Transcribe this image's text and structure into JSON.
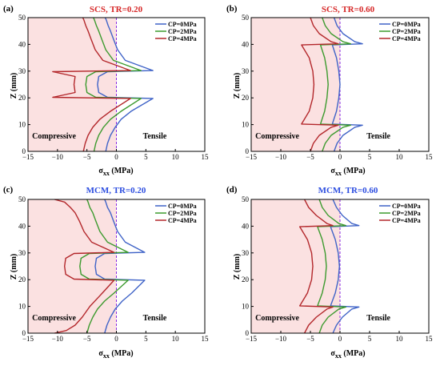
{
  "colors": {
    "cp0": "#3f63c7",
    "cp2": "#3c9a2e",
    "cp4": "#b3272b",
    "compressive_fill": "#fbe1e1",
    "zero_line": "#8a2be2",
    "title_scs": "#d62727",
    "title_mcm": "#2d4ee0"
  },
  "chart_data": [
    {
      "type": "line",
      "panel_label": "(a)",
      "title": "SCS, TR=0.20",
      "title_color": "#d62727",
      "xlabel": "σxx (MPa)",
      "ylabel": "Z (mm)",
      "xlim": [
        -15,
        15
      ],
      "ylim": [
        0,
        50
      ],
      "xticks": [
        "−15",
        "−10",
        "−5",
        "0",
        "5",
        "10",
        "15"
      ],
      "yticks": [
        "0",
        "10",
        "20",
        "30",
        "40",
        "50"
      ],
      "region_labels": [
        "Compressive",
        "Tensile"
      ],
      "interfaces_mm": [
        20,
        30
      ],
      "series": [
        {
          "name": "CP=0MPa",
          "color": "#3f63c7",
          "x": [
            -1.8,
            -1.5,
            -1.0,
            -0.2,
            0.8,
            2.5,
            6.2,
            -1.5,
            -3.0,
            -3.2,
            -3.0,
            -1.5,
            6.2,
            1.5,
            0.2,
            -0.5,
            -1.0,
            -1.4,
            -1.7,
            -1.9
          ],
          "z": [
            0,
            3,
            6,
            9,
            12,
            15,
            19.8,
            20.2,
            22,
            25,
            28,
            29.8,
            30.2,
            34,
            38,
            42,
            45,
            47,
            49,
            50
          ]
        },
        {
          "name": "CP=2MPa",
          "color": "#3c9a2e",
          "x": [
            -3.8,
            -3.5,
            -3.0,
            -2.2,
            -1.0,
            0.8,
            4.2,
            -3.5,
            -5.0,
            -5.2,
            -5.0,
            -3.5,
            4.2,
            -0.5,
            -1.8,
            -2.5,
            -3.0,
            -3.4,
            -3.7,
            -3.9
          ],
          "z": [
            0,
            3,
            6,
            9,
            12,
            15,
            19.8,
            20.2,
            22,
            25,
            28,
            29.8,
            30.2,
            34,
            38,
            42,
            45,
            47,
            49,
            50
          ]
        },
        {
          "name": "CP=4MPa",
          "color": "#b3272b",
          "x": [
            -5.6,
            -5.3,
            -4.8,
            -4.0,
            -2.8,
            -1.0,
            2.4,
            -10.8,
            -7.0,
            -7.2,
            -7.0,
            -10.8,
            2.4,
            -2.3,
            -3.6,
            -4.3,
            -4.8,
            -5.2,
            -5.5,
            -5.7
          ],
          "z": [
            0,
            3,
            6,
            9,
            12,
            15,
            19.8,
            20.2,
            22,
            25,
            28,
            29.8,
            30.2,
            34,
            38,
            42,
            45,
            47,
            49,
            50
          ]
        }
      ]
    },
    {
      "type": "line",
      "panel_label": "(b)",
      "title": "SCS, TR=0.60",
      "title_color": "#d62727",
      "xlabel": "σxx (MPa)",
      "ylabel": "Z (mm)",
      "xlim": [
        -15,
        15
      ],
      "ylim": [
        0,
        50
      ],
      "xticks": [
        "−15",
        "−10",
        "−5",
        "0",
        "5",
        "10",
        "15"
      ],
      "yticks": [
        "0",
        "10",
        "20",
        "30",
        "40",
        "50"
      ],
      "region_labels": [
        "Compressive",
        "Tensile"
      ],
      "interfaces_mm": [
        10,
        40
      ],
      "series": [
        {
          "name": "CP=0MPa",
          "color": "#3f63c7",
          "x": [
            -1.0,
            -0.5,
            0.5,
            2.5,
            3.8,
            -1.3,
            -0.6,
            -0.2,
            0.0,
            -0.2,
            -0.6,
            -1.3,
            3.8,
            2.5,
            0.5,
            -0.5,
            -1.0
          ],
          "z": [
            0,
            3,
            6,
            9,
            9.8,
            10.2,
            15,
            20,
            25,
            30,
            35,
            39.8,
            40.2,
            41,
            44,
            47,
            50
          ]
        },
        {
          "name": "CP=2MPa",
          "color": "#3c9a2e",
          "x": [
            -3.0,
            -2.5,
            -1.5,
            0.5,
            1.8,
            -3.3,
            -2.6,
            -2.2,
            -2.0,
            -2.2,
            -2.6,
            -3.3,
            1.8,
            0.5,
            -1.5,
            -2.5,
            -3.0
          ],
          "z": [
            0,
            3,
            6,
            9,
            9.8,
            10.2,
            15,
            20,
            25,
            30,
            35,
            39.8,
            40.2,
            41,
            44,
            47,
            50
          ]
        },
        {
          "name": "CP=4MPa",
          "color": "#b3272b",
          "x": [
            -5.0,
            -4.5,
            -3.5,
            -1.5,
            -0.3,
            -6.5,
            -5.2,
            -4.6,
            -4.4,
            -4.6,
            -5.2,
            -6.5,
            -0.3,
            -1.5,
            -3.5,
            -4.5,
            -5.0
          ],
          "z": [
            0,
            3,
            6,
            9,
            9.8,
            10.2,
            15,
            20,
            25,
            30,
            35,
            39.8,
            40.2,
            41,
            44,
            47,
            50
          ]
        }
      ]
    },
    {
      "type": "line",
      "panel_label": "(c)",
      "title": "MCM, TR=0.20",
      "title_color": "#2d4ee0",
      "xlabel": "σxx (MPa)",
      "ylabel": "Z (mm)",
      "xlim": [
        -15,
        15
      ],
      "ylim": [
        0,
        50
      ],
      "xticks": [
        "−15",
        "−10",
        "−5",
        "0",
        "5",
        "10",
        "15"
      ],
      "yticks": [
        "0",
        "10",
        "20",
        "30",
        "40",
        "50"
      ],
      "region_labels": [
        "Compressive",
        "Tensile"
      ],
      "interfaces_mm": [
        20,
        30
      ],
      "series": [
        {
          "name": "CP=0MPa",
          "color": "#3f63c7",
          "x": [
            -2.0,
            -1.6,
            -1.0,
            -0.2,
            1.0,
            2.6,
            4.8,
            -2.0,
            -3.4,
            -3.6,
            -3.4,
            -2.0,
            4.8,
            1.5,
            0.2,
            -0.5,
            -1.0,
            -1.5,
            -1.8,
            -2.0
          ],
          "z": [
            0,
            3,
            6,
            9,
            12,
            15,
            19.8,
            20.2,
            22,
            25,
            28,
            29.8,
            30.2,
            34,
            38,
            42,
            45,
            47,
            49,
            50
          ]
        },
        {
          "name": "CP=2MPa",
          "color": "#3c9a2e",
          "x": [
            -5.0,
            -4.6,
            -4.0,
            -3.2,
            -2.0,
            -0.4,
            2.0,
            -4.6,
            -6.0,
            -6.2,
            -6.0,
            -4.6,
            2.0,
            -1.5,
            -2.8,
            -3.5,
            -4.0,
            -4.5,
            -4.8,
            -5.0
          ],
          "z": [
            0,
            3,
            6,
            9,
            12,
            15,
            19.8,
            20.2,
            22,
            25,
            28,
            29.8,
            30.2,
            34,
            38,
            42,
            45,
            47,
            49,
            50
          ]
        },
        {
          "name": "CP=4MPa",
          "color": "#b3272b",
          "x": [
            -10.5,
            -8.5,
            -7.0,
            -5.8,
            -4.5,
            -2.8,
            -0.4,
            -7.2,
            -8.6,
            -8.8,
            -8.6,
            -7.2,
            -0.4,
            -4.2,
            -5.5,
            -6.3,
            -7.0,
            -7.8,
            -8.8,
            -10.5
          ],
          "z": [
            0,
            1,
            3,
            6,
            10,
            14,
            19.8,
            20.2,
            22,
            25,
            28,
            29.8,
            30.2,
            34,
            38,
            42,
            45,
            47,
            49,
            50
          ]
        }
      ]
    },
    {
      "type": "line",
      "panel_label": "(d)",
      "title": "MCM, TR=0.60",
      "title_color": "#2d4ee0",
      "xlabel": "σxx (MPa)",
      "ylabel": "Z (mm)",
      "xlim": [
        -15,
        15
      ],
      "ylim": [
        0,
        50
      ],
      "xticks": [
        "−15",
        "−10",
        "−5",
        "0",
        "5",
        "10",
        "15"
      ],
      "yticks": [
        "0",
        "10",
        "20",
        "30",
        "40",
        "50"
      ],
      "region_labels": [
        "Compressive",
        "Tensile"
      ],
      "interfaces_mm": [
        10,
        40
      ],
      "series": [
        {
          "name": "CP=0MPa",
          "color": "#3f63c7",
          "x": [
            -1.2,
            -0.6,
            0.4,
            2.0,
            3.2,
            -1.6,
            -0.8,
            -0.3,
            -0.1,
            -0.3,
            -0.8,
            -1.6,
            3.2,
            2.0,
            0.4,
            -0.6,
            -1.2
          ],
          "z": [
            0,
            3,
            6,
            9,
            9.8,
            10.2,
            15,
            20,
            25,
            30,
            35,
            39.8,
            40.2,
            41,
            44,
            47,
            50
          ]
        },
        {
          "name": "CP=2MPa",
          "color": "#3c9a2e",
          "x": [
            -3.5,
            -3.0,
            -2.0,
            -0.2,
            1.0,
            -3.8,
            -3.0,
            -2.5,
            -2.3,
            -2.5,
            -3.0,
            -3.8,
            1.0,
            -0.2,
            -2.0,
            -3.0,
            -3.5
          ],
          "z": [
            0,
            3,
            6,
            9,
            9.8,
            10.2,
            15,
            20,
            25,
            30,
            35,
            39.8,
            40.2,
            41,
            44,
            47,
            50
          ]
        },
        {
          "name": "CP=4MPa",
          "color": "#b3272b",
          "x": [
            -6.0,
            -5.3,
            -4.0,
            -2.2,
            -1.2,
            -6.8,
            -5.5,
            -4.8,
            -4.6,
            -4.8,
            -5.5,
            -6.8,
            -1.2,
            -2.2,
            -4.0,
            -5.3,
            -6.0
          ],
          "z": [
            0,
            3,
            6,
            9,
            9.8,
            10.2,
            15,
            20,
            25,
            30,
            35,
            39.8,
            40.2,
            41,
            44,
            47,
            50
          ]
        }
      ]
    }
  ]
}
